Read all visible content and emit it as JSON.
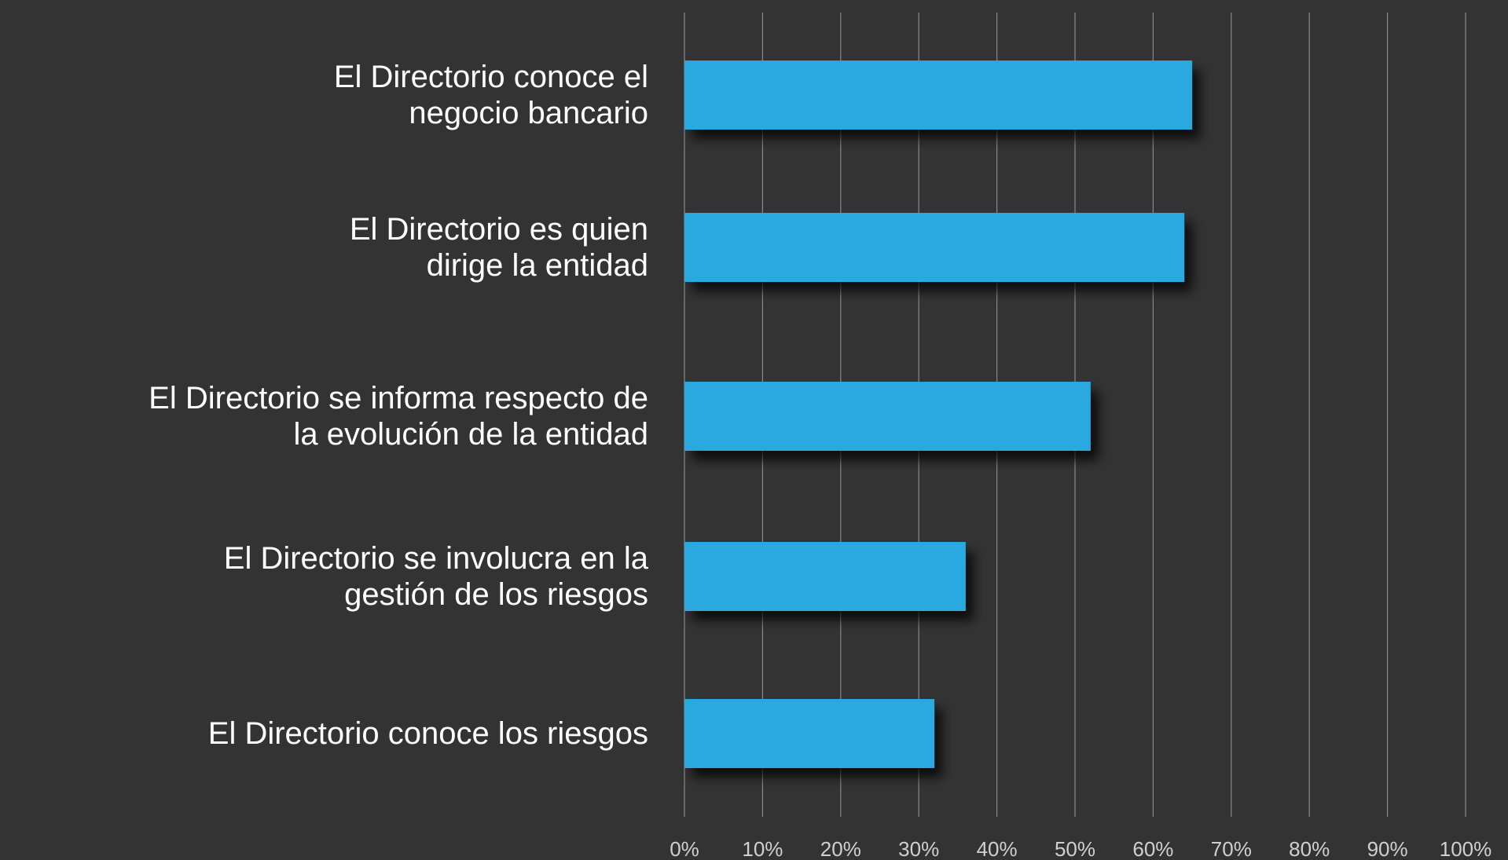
{
  "chart_data": {
    "type": "bar",
    "orientation": "horizontal",
    "categories": [
      "El Directorio conoce el\nnegocio bancario",
      "El Directorio es quien\ndirige la entidad",
      "El Directorio se informa respecto de\nla evolución de la entidad",
      "El Directorio se involucra en la\ngestión de los riesgos",
      "El Directorio conoce los riesgos"
    ],
    "values": [
      65,
      64,
      52,
      36,
      32
    ],
    "color": "#29a9e1",
    "xlim": [
      0,
      100
    ],
    "xticks": [
      {
        "value": 0,
        "label": "0%"
      },
      {
        "value": 10,
        "label": "10%"
      },
      {
        "value": 20,
        "label": "20%"
      },
      {
        "value": 30,
        "label": "30%"
      },
      {
        "value": 40,
        "label": "40%"
      },
      {
        "value": 50,
        "label": "50%"
      },
      {
        "value": 60,
        "label": "60%"
      },
      {
        "value": 70,
        "label": "70%"
      },
      {
        "value": 80,
        "label": "80%"
      },
      {
        "value": 90,
        "label": "90%"
      },
      {
        "value": 100,
        "label": "100%"
      }
    ],
    "grid": true
  }
}
